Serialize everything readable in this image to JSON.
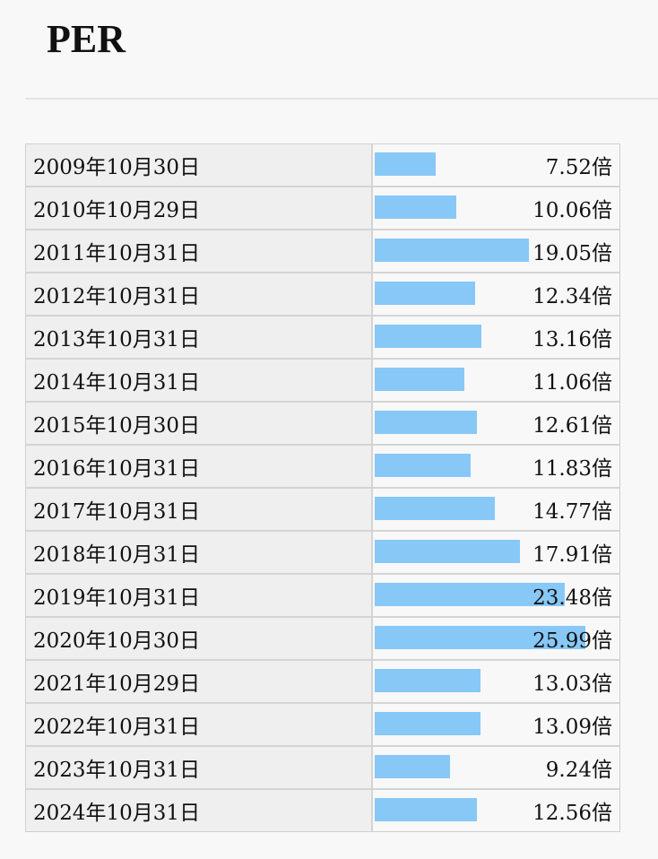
{
  "header": {
    "title": "PER"
  },
  "table": {
    "bar_color": "#88c8f7",
    "rows": [
      {
        "date": "2009年10月30日",
        "value": 7.52,
        "value_label": "7.52倍"
      },
      {
        "date": "2010年10月29日",
        "value": 10.06,
        "value_label": "10.06倍"
      },
      {
        "date": "2011年10月31日",
        "value": 19.05,
        "value_label": "19.05倍"
      },
      {
        "date": "2012年10月31日",
        "value": 12.34,
        "value_label": "12.34倍"
      },
      {
        "date": "2013年10月31日",
        "value": 13.16,
        "value_label": "13.16倍"
      },
      {
        "date": "2014年10月31日",
        "value": 11.06,
        "value_label": "11.06倍"
      },
      {
        "date": "2015年10月30日",
        "value": 12.61,
        "value_label": "12.61倍"
      },
      {
        "date": "2016年10月31日",
        "value": 11.83,
        "value_label": "11.83倍"
      },
      {
        "date": "2017年10月31日",
        "value": 14.77,
        "value_label": "14.77倍"
      },
      {
        "date": "2018年10月31日",
        "value": 17.91,
        "value_label": "17.91倍"
      },
      {
        "date": "2019年10月31日",
        "value": 23.48,
        "value_label": "23.48倍"
      },
      {
        "date": "2020年10月30日",
        "value": 25.99,
        "value_label": "25.99倍"
      },
      {
        "date": "2021年10月29日",
        "value": 13.03,
        "value_label": "13.03倍"
      },
      {
        "date": "2022年10月31日",
        "value": 13.09,
        "value_label": "13.09倍"
      },
      {
        "date": "2023年10月31日",
        "value": 9.24,
        "value_label": "9.24倍"
      },
      {
        "date": "2024年10月31日",
        "value": 12.56,
        "value_label": "12.56倍"
      }
    ]
  }
}
